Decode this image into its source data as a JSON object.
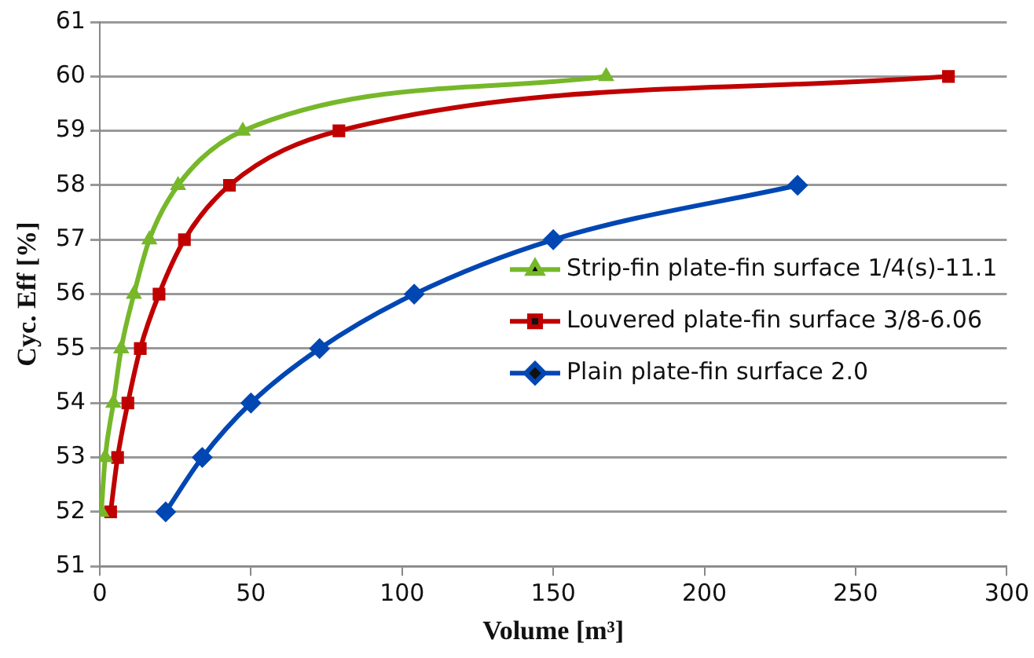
{
  "chart_data": {
    "type": "line",
    "xlabel": "Volume [m³]",
    "ylabel": "Cyc. Eff [%]",
    "xlim": [
      0,
      300
    ],
    "xticks": [
      0,
      50,
      100,
      150,
      200,
      250,
      300
    ],
    "ylim": [
      51,
      61
    ],
    "yticks": [
      51,
      52,
      53,
      54,
      55,
      56,
      57,
      58,
      59,
      60,
      61
    ],
    "grid": "y",
    "legend": "right",
    "line_style": "solid",
    "series": [
      {
        "name": "Strip-fin plate-fin surface 1/4(s)-11.1",
        "color": "#76b82a",
        "marker": "triangle",
        "x": [
          0.5,
          1.8,
          4.5,
          7.1,
          11.3,
          16.4,
          25.9,
          47.3,
          167.5
        ],
        "values": [
          52,
          53,
          54,
          55,
          56,
          57,
          58,
          59,
          60
        ]
      },
      {
        "name": "Louvered plate-fin surface 3/8-6.06",
        "color": "#c00000",
        "marker": "square",
        "x": [
          3.6,
          5.9,
          9.3,
          13.4,
          19.6,
          28,
          42.9,
          79.1,
          280.7
        ],
        "values": [
          52,
          53,
          54,
          55,
          56,
          57,
          58,
          59,
          60
        ]
      },
      {
        "name": "Plain plate-fin surface 2.0",
        "color": "#0047b3",
        "marker": "diamond",
        "x": [
          21.8,
          33.9,
          50,
          72.7,
          104,
          150,
          230.8
        ],
        "values": [
          52,
          53,
          54,
          55,
          56,
          57,
          58
        ]
      }
    ]
  }
}
